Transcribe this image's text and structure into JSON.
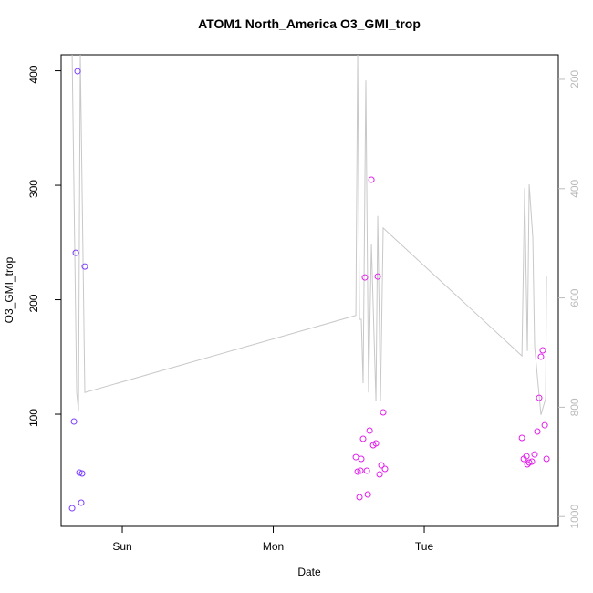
{
  "chart_data": {
    "type": "scatter",
    "title": "ATOM1 North_America O3_GMI_trop",
    "x_label": "Date",
    "y_label": "O3_GMI_trop",
    "xlim": [
      -0.405,
      2.888
    ],
    "ylim": [
      2,
      414
    ],
    "y2lim": [
      1018,
      155
    ],
    "xticks": [
      {
        "value": 0,
        "label": "Sun"
      },
      {
        "value": 1,
        "label": "Mon"
      },
      {
        "value": 2,
        "label": "Tue"
      }
    ],
    "yticks": [
      100,
      200,
      300,
      400
    ],
    "y2ticks": [
      200,
      400,
      600,
      800,
      1000
    ],
    "y2_color": "#bbbbbb",
    "series": [
      {
        "x": [
          -0.332,
          -0.32,
          -0.308,
          -0.296,
          -0.284,
          -0.266,
          -0.272,
          -0.248,
          1.547,
          1.559,
          1.577,
          1.571,
          1.583,
          1.595,
          1.607,
          1.62,
          1.626,
          1.638,
          1.65,
          1.662,
          1.68,
          1.692,
          1.704,
          1.716,
          1.728,
          1.74,
          2.647,
          2.659,
          2.677,
          2.683,
          2.695,
          2.713,
          2.731,
          2.749,
          2.761,
          2.773,
          2.785,
          2.798,
          2.81
        ],
        "values": [
          17.9,
          93.6,
          241,
          399.6,
          49,
          48.2,
          22.7,
          229,
          62.5,
          49.8,
          50.6,
          27.5,
          61,
          78.5,
          219.5,
          50.6,
          29.9,
          85.7,
          304.8,
          72.9,
          74.5,
          220.3,
          47.4,
          55.4,
          101.6,
          52.2,
          79.3,
          61,
          63.3,
          56.2,
          57.8,
          58.6,
          64.9,
          84.9,
          114.3,
          150.2,
          155.8,
          90.4,
          61
        ],
        "colors": [
          "#7a3cff",
          "#7a3cff",
          "#7a3cff",
          "#7a3cff",
          "#7a3cff",
          "#7a3cff",
          "#7a3cff",
          "#7a3cff",
          "#e020e8",
          "#e020e8",
          "#e020e8",
          "#e020e8",
          "#e020e8",
          "#e020e8",
          "#e020e8",
          "#e020e8",
          "#e020e8",
          "#e020e8",
          "#e020e8",
          "#e020e8",
          "#e020e8",
          "#e020e8",
          "#e020e8",
          "#e020e8",
          "#e020e8",
          "#e020e8",
          "#e020e8",
          "#e020e8",
          "#e020e8",
          "#e020e8",
          "#e020e8",
          "#e020e8",
          "#e020e8",
          "#e020e8",
          "#e020e8",
          "#e020e8",
          "#e020e8",
          "#e020e8",
          "#e020e8"
        ]
      },
      {
        "type": "line",
        "axis": "y2",
        "color": "#c8c8c8",
        "x": [
          -0.332,
          -0.302,
          -0.29,
          -0.278,
          -0.248,
          1.547,
          1.559,
          1.571,
          1.583,
          1.595,
          1.613,
          1.631,
          1.65,
          1.68,
          1.692,
          1.71,
          1.728,
          2.647,
          2.665,
          2.683,
          2.695,
          2.719,
          2.731,
          2.773,
          2.804,
          2.81
        ],
        "values": [
          155,
          773,
          806,
          155,
          773,
          632,
          155,
          639,
          639,
          756,
          202,
          773,
          502,
          789,
          450,
          789,
          472,
          706,
          399,
          697,
          392,
          489,
          689,
          814,
          784,
          561
        ]
      }
    ]
  }
}
